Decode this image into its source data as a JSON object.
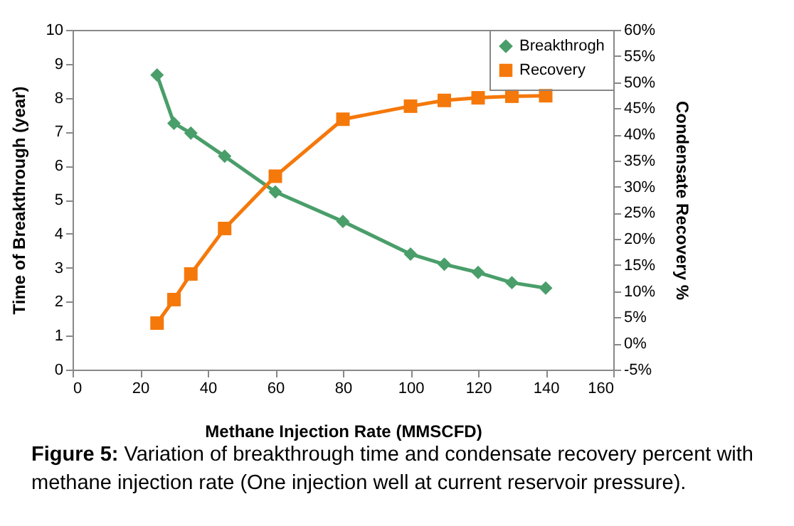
{
  "chart_data": {
    "type": "line",
    "xlabel": "Methane Injection Rate (MMSCFD)",
    "ylabel": "Time of Breakthrough (year)",
    "y2label": "Condensate Recovery %",
    "annotations": [
      "Figure 5: Variation of breakthrough time and condensate recovery percent with methane injection rate (One injection well at current reservoir pressure)."
    ],
    "x": [
      25,
      30,
      35,
      45,
      60,
      80,
      100,
      110,
      120,
      130,
      140
    ],
    "series": [
      {
        "name": "Breakthrogh",
        "color": "#4a9e6a",
        "marker": "diamond",
        "values": [
          8.67,
          7.25,
          6.96,
          6.28,
          5.23,
          4.36,
          3.4,
          3.1,
          2.86,
          2.56,
          2.4
        ]
      },
      {
        "name": "Recovery",
        "color": "#f5780a",
        "marker": "square",
        "axis": "y2",
        "values": [
          3.9,
          8.4,
          13.3,
          22.0,
          32.0,
          42.9,
          45.4,
          46.5,
          47.0,
          47.3,
          47.4
        ]
      }
    ],
    "xlim": [
      0,
      160
    ],
    "xticks": [
      0,
      20,
      40,
      60,
      80,
      100,
      120,
      140,
      160
    ],
    "ylim": [
      0,
      10
    ],
    "yticks": [
      0,
      1,
      2,
      3,
      4,
      5,
      6,
      7,
      8,
      9,
      10
    ],
    "y2lim": [
      -5,
      60
    ],
    "y2ticks": [
      {
        "value": -5,
        "label": "-5%"
      },
      {
        "value": 0,
        "label": "0%"
      },
      {
        "value": 5,
        "label": "5%"
      },
      {
        "value": 10,
        "label": "10%"
      },
      {
        "value": 15,
        "label": "15%"
      },
      {
        "value": 20,
        "label": "20%"
      },
      {
        "value": 25,
        "label": "25%"
      },
      {
        "value": 30,
        "label": "30%"
      },
      {
        "value": 35,
        "label": "35%"
      },
      {
        "value": 40,
        "label": "40%"
      },
      {
        "value": 45,
        "label": "45%"
      },
      {
        "value": 50,
        "label": "50%"
      },
      {
        "value": 55,
        "label": "55%"
      },
      {
        "value": 60,
        "label": "60%"
      }
    ],
    "grid": false,
    "legend": "top right",
    "line_style": "solid"
  }
}
